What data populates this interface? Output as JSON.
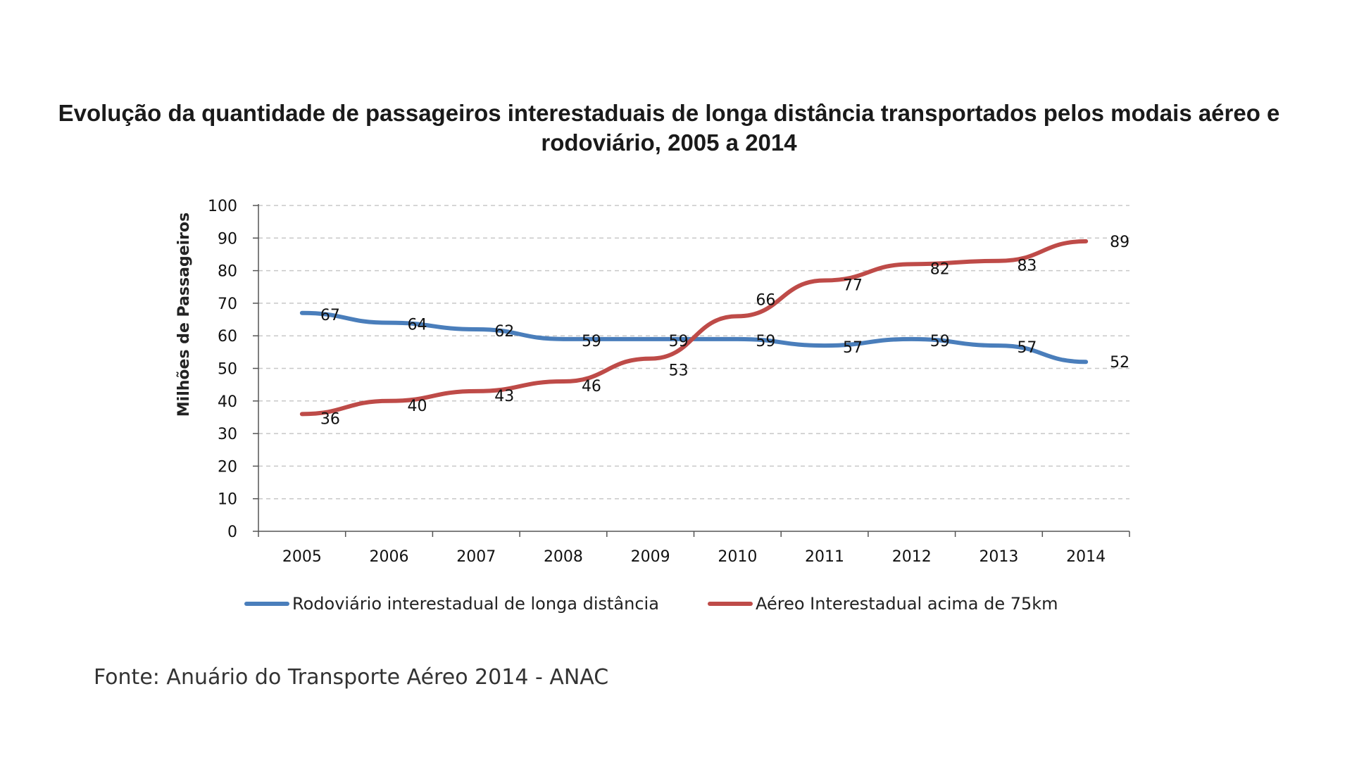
{
  "chart_data": {
    "type": "line",
    "title": "Evolução da quantidade de passageiros interestaduais de longa distância transportados pelos modais aéreo e rodoviário, 2005 a 2014",
    "xlabel": "",
    "ylabel": "Milhões de Passageiros",
    "x": [
      "2005",
      "2006",
      "2007",
      "2008",
      "2009",
      "2010",
      "2011",
      "2012",
      "2013",
      "2014"
    ],
    "ylim": [
      0,
      100
    ],
    "yticks": [
      0,
      10,
      20,
      30,
      40,
      50,
      60,
      70,
      80,
      90,
      100
    ],
    "grid": "horizontal dashed",
    "legend_position": "bottom",
    "series": [
      {
        "name": "Rodoviário interestadual de longa distância",
        "color": "#4a7ebb",
        "values": [
          67,
          64,
          62,
          59,
          59,
          59,
          57,
          59,
          57,
          52
        ]
      },
      {
        "name": "Aéreo Interestadual acima de 75km",
        "color": "#be4b48",
        "values": [
          36,
          40,
          43,
          46,
          53,
          66,
          77,
          82,
          83,
          89
        ]
      }
    ],
    "source": "Fonte: Anuário do Transporte Aéreo 2014 - ANAC"
  }
}
